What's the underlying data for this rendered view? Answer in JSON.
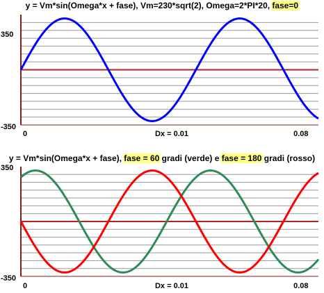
{
  "chart_data": [
    {
      "type": "line",
      "title_parts": [
        {
          "text": "y = Vm*sin(Omega*x + fase), Vm=230*sqrt(2), Omega=2*PI*20, ",
          "highlight": false
        },
        {
          "text": "fase=0",
          "highlight": true
        }
      ],
      "ytick_labels": [
        "350",
        "-350"
      ],
      "xtick_labels": [
        "0",
        "0.08"
      ],
      "dx_label": "Dx = 0.01",
      "xlim": [
        0,
        0.085
      ],
      "ylim": [
        -350,
        350
      ],
      "grid": true,
      "grid_step_y": 50,
      "vm": 325.27,
      "frequency_hz": 20,
      "series": [
        {
          "phase_deg": 0,
          "color": "#0000ff"
        }
      ]
    },
    {
      "type": "line",
      "title_parts": [
        {
          "text": "y = Vm*sin(Omega*x + fase), ",
          "highlight": false
        },
        {
          "text": "fase = 60",
          "highlight": true
        },
        {
          "text": " gradi (verde) e ",
          "highlight": false
        },
        {
          "text": "fase = 180",
          "highlight": true
        },
        {
          "text": " gradi (rosso)",
          "highlight": false
        }
      ],
      "ytick_labels": [
        "350",
        "-350"
      ],
      "xtick_labels": [
        "0",
        "0.08"
      ],
      "dx_label": "Dx = 0.01",
      "xlim": [
        0,
        0.085
      ],
      "ylim": [
        -350,
        350
      ],
      "grid": true,
      "grid_step_y": 50,
      "vm": 325.27,
      "frequency_hz": 20,
      "series": [
        {
          "phase_deg": 60,
          "color": "#2e8b57"
        },
        {
          "phase_deg": 180,
          "color": "#ff0000"
        }
      ]
    }
  ],
  "colors": {
    "grid": "#999999",
    "frame": "#8b1a1a",
    "zero_axis": "#b22222",
    "highlight": "#ffff80"
  }
}
